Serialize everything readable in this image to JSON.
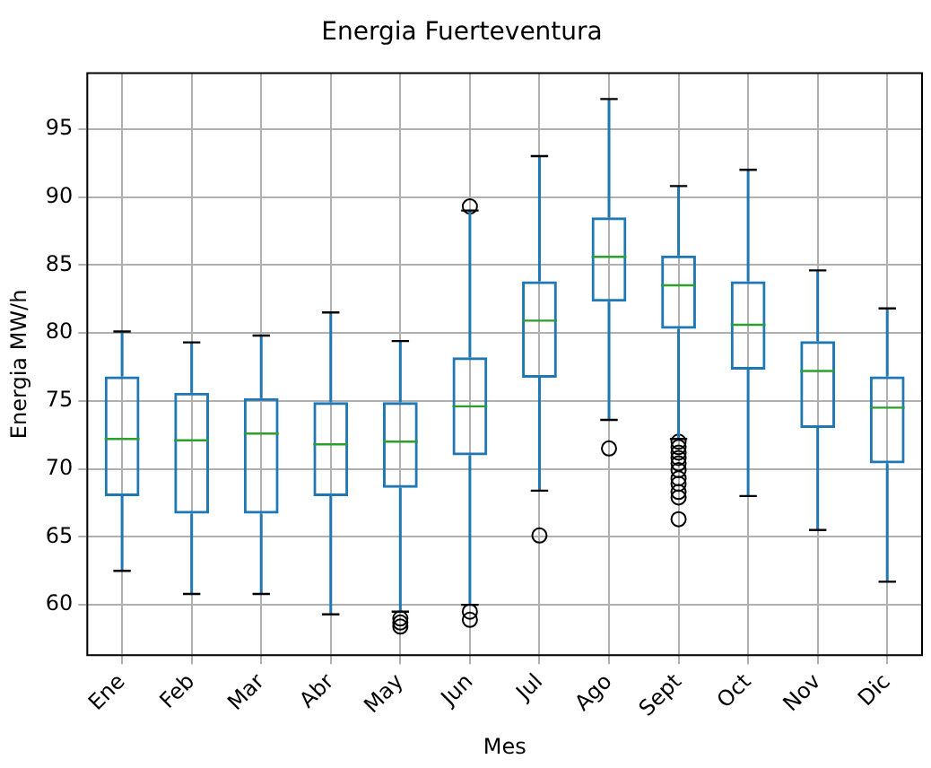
{
  "chart_data": {
    "type": "box",
    "title": "Energia Fuerteventura",
    "xlabel": "Mes",
    "ylabel": "Energia MW/h",
    "categories": [
      "Ene",
      "Feb",
      "Mar",
      "Abr",
      "May",
      "Jun",
      "Jul",
      "Ago",
      "Sept",
      "Oct",
      "Nov",
      "Dic"
    ],
    "color": "#1f77b4",
    "grid": true,
    "ylim": [
      56.3,
      99.1
    ],
    "yticks": [
      60,
      65,
      70,
      75,
      80,
      85,
      90,
      95
    ],
    "boxes": [
      {
        "low": 62.5,
        "q1": 68,
        "median": 72.2,
        "q3": 76.8,
        "high": 80.1
      },
      {
        "low": 60.8,
        "q1": 66.7,
        "median": 72.1,
        "q3": 75.6,
        "high": 79.3
      },
      {
        "low": 60.8,
        "q1": 66.7,
        "median": 72.6,
        "q3": 75.2,
        "high": 79.8
      },
      {
        "low": 59.3,
        "q1": 68,
        "median": 71.8,
        "q3": 74.9,
        "high": 81.5
      },
      {
        "low": 59.5,
        "q1": 68.6,
        "median": 72,
        "q3": 74.9,
        "high": 79.4,
        "outliers": [
          59,
          58.7,
          58.4
        ]
      },
      {
        "low": 60,
        "q1": 71,
        "median": 74.6,
        "q3": 78.2,
        "high": 89,
        "outliers": [
          89.3,
          59.5,
          58.9
        ]
      },
      {
        "low": 68.4,
        "q1": 76.7,
        "median": 80.9,
        "q3": 83.8,
        "high": 93,
        "outliers": [
          65.1
        ]
      },
      {
        "low": 73.6,
        "q1": 82.3,
        "median": 85.6,
        "q3": 88.5,
        "high": 97.2,
        "outliers": [
          71.5
        ]
      },
      {
        "low": 72.2,
        "q1": 80.3,
        "median": 83.5,
        "q3": 85.7,
        "high": 90.8,
        "outliers": [
          72,
          71.6,
          71.2,
          70.8,
          70.4,
          69.9,
          69.3,
          68.9,
          68.3,
          67.9,
          66.3
        ]
      },
      {
        "low": 68,
        "q1": 77.3,
        "median": 80.6,
        "q3": 83.8,
        "high": 92
      },
      {
        "low": 65.5,
        "q1": 73,
        "median": 77.2,
        "q3": 79.4,
        "high": 84.6
      },
      {
        "low": 61.7,
        "q1": 70.4,
        "median": 74.5,
        "q3": 76.8,
        "high": 81.8
      }
    ]
  }
}
